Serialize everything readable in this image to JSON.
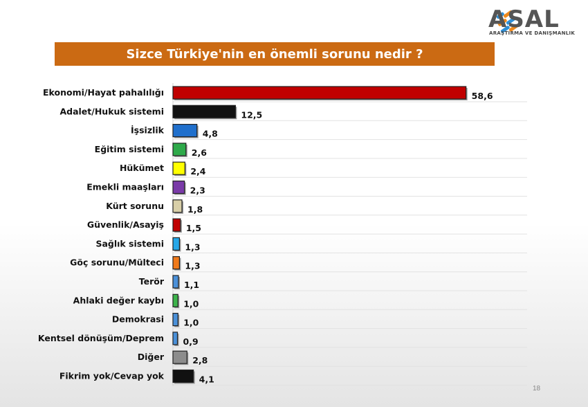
{
  "brand": {
    "name": "ASAL",
    "tagline": "ARAŞTIRMA VE DANIŞMANLIK"
  },
  "page_number": "18",
  "chart_data": {
    "type": "bar",
    "orientation": "horizontal",
    "title": "Sizce Türkiye'nin en önemli sorunu nedir ?",
    "categories": [
      "Ekonomi/Hayat pahalılığı",
      "Adalet/Hukuk sistemi",
      "İşsizlik",
      "Eğitim sistemi",
      "Hükümet",
      "Emekli maaşları",
      "Kürt sorunu",
      "Güvenlik/Asayiş",
      "Sağlık sistemi",
      "Göç sorunu/Mülteci",
      "Terör",
      "Ahlaki değer kaybı",
      "Demokrasi",
      "Kentsel dönüşüm/Deprem",
      "Diğer",
      "Fikrim yok/Cevap yok"
    ],
    "values": [
      58.6,
      12.5,
      4.8,
      2.6,
      2.4,
      2.3,
      1.8,
      1.5,
      1.3,
      1.3,
      1.1,
      1.0,
      1.0,
      0.9,
      2.8,
      4.1
    ],
    "value_labels": [
      "58,6",
      "12,5",
      "4,8",
      "2,6",
      "2,4",
      "2,3",
      "1,8",
      "1,5",
      "1,3",
      "1,3",
      "1,1",
      "1,0",
      "1,0",
      "0,9",
      "2,8",
      "4,1"
    ],
    "colors": [
      "#c00000",
      "#111111",
      "#1f6fcc",
      "#2eaa4a",
      "#ffff00",
      "#7a3aa8",
      "#d8cfa8",
      "#c00000",
      "#26a7e8",
      "#f07a1a",
      "#4a90d9",
      "#3cb44b",
      "#4a90d9",
      "#4a90d9",
      "#8c8c8c",
      "#111111"
    ],
    "xlim": [
      0,
      60
    ],
    "grid": true,
    "legend": "none"
  }
}
